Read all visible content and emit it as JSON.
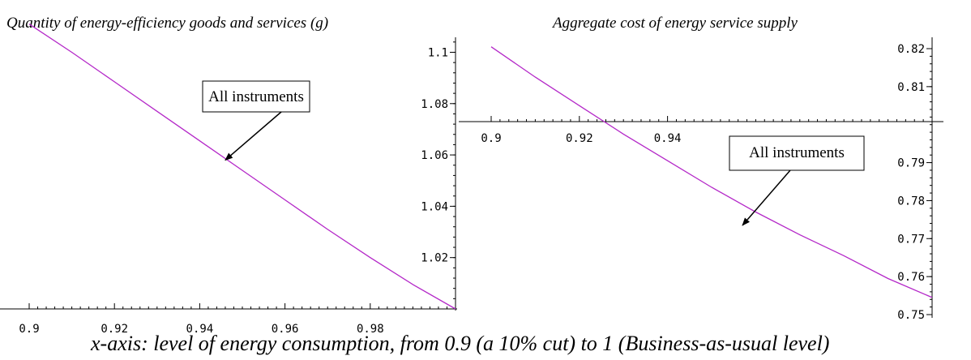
{
  "caption": "x-axis: level of energy consumption, from 0.9 (a 10% cut) to 1 (Business-as-usual level)",
  "colors": {
    "series": "#b428c8",
    "axis": "#000000",
    "text": "#000000"
  },
  "chart_data": [
    {
      "type": "line",
      "title": "Quantity of energy-efficiency goods and services (g)",
      "xlabel": "",
      "ylabel": "",
      "xlim": [
        0.9,
        1.0
      ],
      "ylim": [
        1.0,
        1.115
      ],
      "x_ticks": [
        "0.9",
        "0.92",
        "0.94",
        "0.96",
        "0.98"
      ],
      "y_ticks": [
        "1.02",
        "1.04",
        "1.06",
        "1.08",
        "1.1"
      ],
      "series": [
        {
          "x": [
            0.9,
            0.91,
            0.92,
            0.93,
            0.94,
            0.95,
            0.96,
            0.97,
            0.98,
            0.99,
            1.0
          ],
          "y": [
            1.111,
            1.1,
            1.0885,
            1.077,
            1.0655,
            1.054,
            1.0425,
            1.031,
            1.02,
            1.0095,
            1.0
          ]
        }
      ],
      "annotations": [
        {
          "text": "All instruments",
          "points_to": {
            "x": 0.946,
            "y": 1.058
          }
        }
      ],
      "grid": false
    },
    {
      "type": "line",
      "title": "Aggregate cost of energy service supply",
      "xlabel": "",
      "ylabel": "",
      "xlim": [
        0.9,
        1.0
      ],
      "ylim": [
        0.75,
        0.82
      ],
      "x_ticks": [
        "0.9",
        "0.92",
        "0.94"
      ],
      "y_ticks": [
        "0.75",
        "0.76",
        "0.77",
        "0.78",
        "0.79",
        "0.81",
        "0.82"
      ],
      "series": [
        {
          "x": [
            0.9,
            0.91,
            0.92,
            0.93,
            0.94,
            0.95,
            0.96,
            0.97,
            0.98,
            0.99,
            1.0
          ],
          "y": [
            0.8205,
            0.8125,
            0.805,
            0.7975,
            0.7905,
            0.7835,
            0.777,
            0.771,
            0.7655,
            0.7595,
            0.7545
          ]
        }
      ],
      "annotations": [
        {
          "text": "All instruments",
          "points_to": {
            "x": 0.957,
            "y": 0.7735
          }
        }
      ],
      "grid": false
    }
  ]
}
